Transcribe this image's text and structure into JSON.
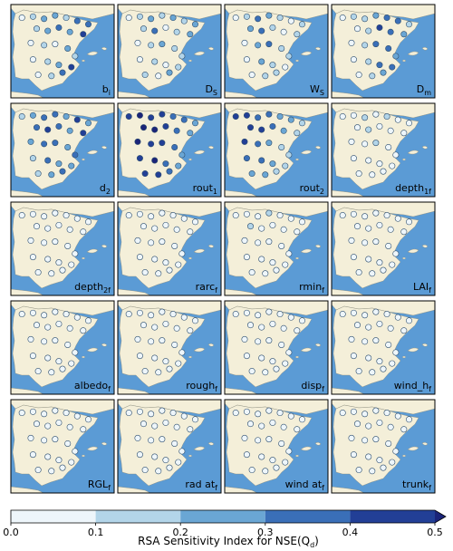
{
  "chart_data": {
    "type": "map",
    "sea_color": "#5b9bd5",
    "land_color": "#f4efd9",
    "xlim": [
      -9.5,
      4.5
    ],
    "ylim": [
      35.5,
      44
    ],
    "stations": {
      "lon": [
        -8.0,
        -6.5,
        -5.0,
        -3.5,
        -2.0,
        -0.5,
        1.0,
        -6.0,
        -4.5,
        -3.0,
        -1.5,
        0.3,
        -6.8,
        -5.0,
        -3.5,
        -1.8,
        -0.8,
        -6.5,
        -4.5,
        -3.0,
        -5.8,
        -4.0,
        -2.5,
        -1.3
      ],
      "lat": [
        42.8,
        42.9,
        42.7,
        43.0,
        42.8,
        42.5,
        42.2,
        41.8,
        41.6,
        41.9,
        41.5,
        41.3,
        40.5,
        40.3,
        40.4,
        40.0,
        39.3,
        39.0,
        38.8,
        38.5,
        37.6,
        37.5,
        37.8,
        38.3
      ]
    },
    "panels": [
      {
        "label": {
          "base": "b",
          "sub": "i"
        },
        "values": [
          0.05,
          0.1,
          0.22,
          0.25,
          0.15,
          0.32,
          0.38,
          0.12,
          0.28,
          0.35,
          0.2,
          0.42,
          0.05,
          0.15,
          0.08,
          0.22,
          0.12,
          0.05,
          0.1,
          0.25,
          0.08,
          0.12,
          0.3,
          0.45
        ]
      },
      {
        "label": {
          "base": "D",
          "sub": "S"
        },
        "values": [
          0.05,
          0.12,
          0.25,
          0.15,
          0.22,
          0.1,
          0.2,
          0.18,
          0.3,
          0.08,
          0.15,
          0.25,
          0.05,
          0.12,
          0.22,
          0.1,
          0.18,
          0.05,
          0.15,
          0.08,
          0.12,
          0.05,
          0.2,
          0.1
        ]
      },
      {
        "label": {
          "base": "W",
          "sub": "S"
        },
        "values": [
          0.08,
          0.15,
          0.3,
          0.2,
          0.12,
          0.05,
          0.1,
          0.2,
          0.35,
          0.15,
          0.08,
          0.12,
          0.05,
          0.22,
          0.3,
          0.1,
          0.15,
          0.08,
          0.2,
          0.12,
          0.05,
          0.1,
          0.15,
          0.08
        ]
      },
      {
        "label": {
          "base": "D",
          "sub": "m"
        },
        "values": [
          0.05,
          0.1,
          0.15,
          0.2,
          0.35,
          0.3,
          0.12,
          0.08,
          0.15,
          0.42,
          0.32,
          0.25,
          0.05,
          0.1,
          0.38,
          0.3,
          0.2,
          0.05,
          0.12,
          0.35,
          0.08,
          0.1,
          0.25,
          0.3
        ]
      },
      {
        "label": {
          "base": "d",
          "sub": "2"
        },
        "values": [
          0.12,
          0.25,
          0.35,
          0.3,
          0.22,
          0.4,
          0.2,
          0.3,
          0.42,
          0.35,
          0.28,
          0.45,
          0.2,
          0.32,
          0.38,
          0.25,
          0.3,
          0.15,
          0.35,
          0.28,
          0.12,
          0.25,
          0.3,
          0.2
        ]
      },
      {
        "label": {
          "base": "rout",
          "sub": "1"
        },
        "values": [
          0.48,
          0.52,
          0.45,
          0.4,
          0.35,
          0.3,
          0.25,
          0.55,
          0.5,
          0.42,
          0.3,
          0.28,
          0.52,
          0.48,
          0.4,
          0.32,
          0.28,
          0.45,
          0.5,
          0.35,
          0.42,
          0.45,
          0.3,
          0.25
        ]
      },
      {
        "label": {
          "base": "rout",
          "sub": "2"
        },
        "values": [
          0.45,
          0.42,
          0.38,
          0.32,
          0.25,
          0.2,
          0.15,
          0.48,
          0.4,
          0.3,
          0.22,
          0.18,
          0.4,
          0.35,
          0.28,
          0.18,
          0.15,
          0.3,
          0.32,
          0.2,
          0.22,
          0.25,
          0.15,
          0.12
        ]
      },
      {
        "label": {
          "base": "depth",
          "sub": "1f"
        },
        "values": [
          0.05,
          0.08,
          0.1,
          0.05,
          0.12,
          0.06,
          0.04,
          0.08,
          0.1,
          0.05,
          0.06,
          0.04,
          0.05,
          0.08,
          0.12,
          0.05,
          0.06,
          0.04,
          0.08,
          0.05,
          0.04,
          0.06,
          0.05,
          0.04
        ]
      },
      {
        "label": {
          "base": "depth",
          "sub": "2f"
        },
        "values": [
          0.04,
          0.06,
          0.05,
          0.08,
          0.04,
          0.03,
          0.05,
          0.06,
          0.04,
          0.07,
          0.05,
          0.03,
          0.04,
          0.05,
          0.06,
          0.04,
          0.05,
          0.03,
          0.06,
          0.04,
          0.03,
          0.05,
          0.04,
          0.03
        ]
      },
      {
        "label": {
          "base": "rarc",
          "sub": "f"
        },
        "values": [
          0.03,
          0.05,
          0.04,
          0.06,
          0.05,
          0.03,
          0.04,
          0.05,
          0.06,
          0.04,
          0.03,
          0.05,
          0.04,
          0.06,
          0.05,
          0.03,
          0.04,
          0.05,
          0.03,
          0.04,
          0.05,
          0.03,
          0.04,
          0.05
        ]
      },
      {
        "label": {
          "base": "rmin",
          "sub": "f"
        },
        "values": [
          0.05,
          0.08,
          0.06,
          0.1,
          0.05,
          0.04,
          0.06,
          0.12,
          0.08,
          0.06,
          0.05,
          0.04,
          0.06,
          0.08,
          0.07,
          0.05,
          0.06,
          0.04,
          0.08,
          0.05,
          0.04,
          0.06,
          0.05,
          0.04
        ]
      },
      {
        "label": {
          "base": "LAI",
          "sub": "f"
        },
        "values": [
          0.04,
          0.06,
          0.05,
          0.07,
          0.05,
          0.04,
          0.03,
          0.06,
          0.05,
          0.04,
          0.06,
          0.03,
          0.04,
          0.05,
          0.06,
          0.04,
          0.05,
          0.03,
          0.05,
          0.04,
          0.03,
          0.05,
          0.04,
          0.03
        ]
      },
      {
        "label": {
          "base": "albedo",
          "sub": "f"
        },
        "values": [
          0.04,
          0.05,
          0.06,
          0.05,
          0.04,
          0.03,
          0.05,
          0.06,
          0.05,
          0.04,
          0.05,
          0.03,
          0.04,
          0.06,
          0.05,
          0.04,
          0.05,
          0.03,
          0.04,
          0.05,
          0.03,
          0.04,
          0.05,
          0.03
        ]
      },
      {
        "label": {
          "base": "rough",
          "sub": "f"
        },
        "values": [
          0.03,
          0.04,
          0.05,
          0.04,
          0.03,
          0.04,
          0.03,
          0.05,
          0.04,
          0.03,
          0.04,
          0.03,
          0.04,
          0.05,
          0.04,
          0.03,
          0.04,
          0.03,
          0.05,
          0.04,
          0.03,
          0.04,
          0.03,
          0.04
        ]
      },
      {
        "label": {
          "base": "disp",
          "sub": "f"
        },
        "values": [
          0.03,
          0.04,
          0.03,
          0.05,
          0.04,
          0.03,
          0.04,
          0.03,
          0.05,
          0.04,
          0.03,
          0.04,
          0.03,
          0.04,
          0.05,
          0.03,
          0.04,
          0.03,
          0.04,
          0.03,
          0.04,
          0.03,
          0.04,
          0.03
        ]
      },
      {
        "label": {
          "base": "wind_h",
          "sub": "f"
        },
        "values": [
          0.04,
          0.03,
          0.05,
          0.04,
          0.03,
          0.04,
          0.05,
          0.03,
          0.04,
          0.05,
          0.03,
          0.04,
          0.03,
          0.05,
          0.04,
          0.03,
          0.04,
          0.05,
          0.03,
          0.04,
          0.03,
          0.05,
          0.04,
          0.03
        ]
      },
      {
        "label": {
          "base": "RGL",
          "sub": "f"
        },
        "values": [
          0.04,
          0.06,
          0.05,
          0.04,
          0.05,
          0.03,
          0.04,
          0.06,
          0.05,
          0.04,
          0.03,
          0.05,
          0.04,
          0.05,
          0.06,
          0.04,
          0.03,
          0.05,
          0.04,
          0.03,
          0.05,
          0.04,
          0.03,
          0.04
        ]
      },
      {
        "label": {
          "base": "rad at",
          "sub": "f"
        },
        "values": [
          0.05,
          0.04,
          0.06,
          0.05,
          0.04,
          0.05,
          0.03,
          0.04,
          0.06,
          0.05,
          0.04,
          0.03,
          0.05,
          0.04,
          0.05,
          0.06,
          0.04,
          0.03,
          0.05,
          0.04,
          0.03,
          0.05,
          0.04,
          0.03
        ]
      },
      {
        "label": {
          "base": "wind at",
          "sub": "f"
        },
        "values": [
          0.04,
          0.05,
          0.04,
          0.06,
          0.05,
          0.04,
          0.03,
          0.05,
          0.04,
          0.05,
          0.04,
          0.03,
          0.04,
          0.06,
          0.05,
          0.04,
          0.03,
          0.04,
          0.05,
          0.04,
          0.03,
          0.04,
          0.05,
          0.03
        ]
      },
      {
        "label": {
          "base": "trunk",
          "sub": "f"
        },
        "values": [
          0.05,
          0.06,
          0.05,
          0.07,
          0.06,
          0.04,
          0.05,
          0.06,
          0.08,
          0.05,
          0.04,
          0.05,
          0.05,
          0.06,
          0.07,
          0.05,
          0.04,
          0.05,
          0.06,
          0.05,
          0.04,
          0.05,
          0.06,
          0.04
        ]
      }
    ],
    "colorbar": {
      "ticks": [
        {
          "value": 0,
          "label": "0.0"
        },
        0.1,
        0.2,
        0.3,
        0.4,
        0.5
      ],
      "colors": [
        "#eef6fb",
        "#b3d5e9",
        "#6aa6d4",
        "#3a6fb8",
        "#223f96"
      ],
      "extend_color": "#1b2479",
      "label": {
        "main": "RSA Sensitivity Index for NSE(Q",
        "sub": "d",
        "end": ")"
      }
    }
  }
}
